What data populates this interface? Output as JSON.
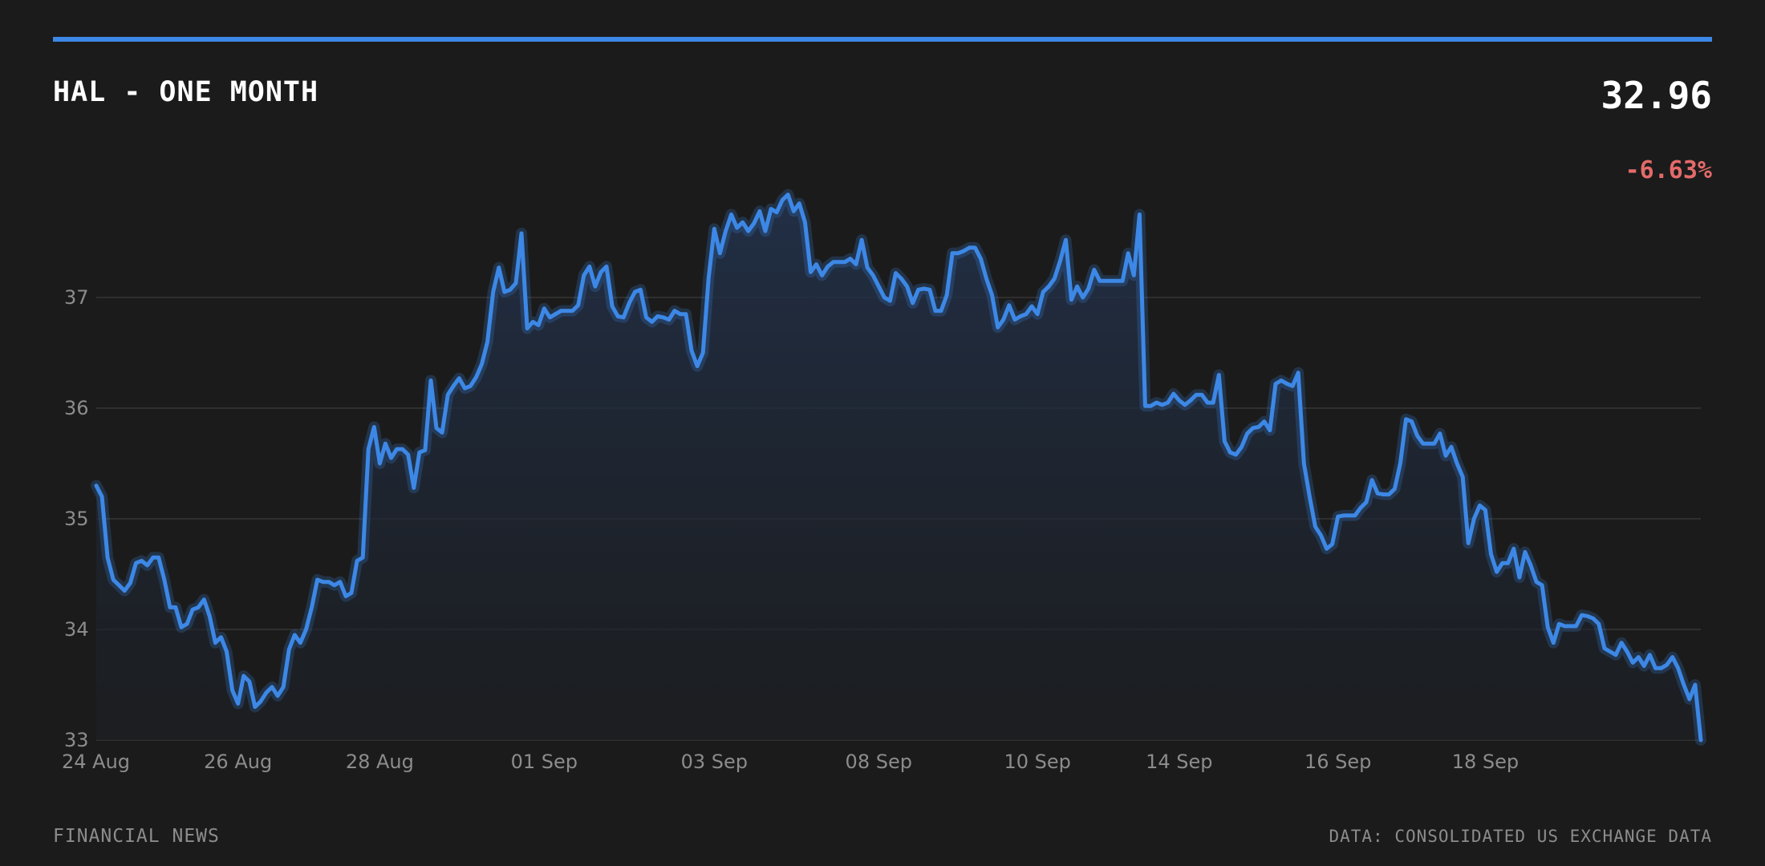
{
  "header": {
    "title": "HAL - ONE MONTH",
    "price": "32.96",
    "change": "-6.63%"
  },
  "footer": {
    "left": "FINANCIAL NEWS",
    "right": "DATA: CONSOLIDATED US EXCHANGE DATA"
  },
  "colors": {
    "background": "#1b1b1b",
    "accent": "#3d88e6",
    "negative": "#e46a6a",
    "grid": "#363636",
    "muted_text": "#8c8c8c"
  },
  "chart_data": {
    "type": "line",
    "title": "HAL - ONE MONTH",
    "xlabel": "",
    "ylabel": "",
    "ylim": [
      33,
      38.9
    ],
    "yticks": [
      33,
      34,
      35,
      36,
      37
    ],
    "grid": true,
    "legend": "none",
    "x_ticks": [
      {
        "label": "24 Aug",
        "index": 0
      },
      {
        "label": "26 Aug",
        "index": 25
      },
      {
        "label": "28 Aug",
        "index": 50
      },
      {
        "label": "01 Sep",
        "index": 79
      },
      {
        "label": "03 Sep",
        "index": 109
      },
      {
        "label": "08 Sep",
        "index": 138
      },
      {
        "label": "10 Sep",
        "index": 166
      },
      {
        "label": "14 Sep",
        "index": 191
      },
      {
        "label": "16 Sep",
        "index": 219
      },
      {
        "label": "18 Sep",
        "index": 245
      },
      {
        "label": "",
        "index": 262
      }
    ],
    "series": [
      {
        "values": [
          35.3,
          35.2,
          34.65,
          34.45,
          34.4,
          34.35,
          34.42,
          34.6,
          34.62,
          34.58,
          34.65,
          34.65,
          34.45,
          34.2,
          34.2,
          34.02,
          34.05,
          34.18,
          34.2,
          34.27,
          34.12,
          33.88,
          33.93,
          33.8,
          33.45,
          33.33,
          33.58,
          33.53,
          33.3,
          33.35,
          33.43,
          33.48,
          33.4,
          33.48,
          33.82,
          33.95,
          33.88,
          34.0,
          34.2,
          34.45,
          34.43,
          34.43,
          34.4,
          34.43,
          34.3,
          34.33,
          34.62,
          34.65,
          35.63,
          35.83,
          35.5,
          35.68,
          35.55,
          35.63,
          35.63,
          35.58,
          35.28,
          35.6,
          35.62,
          36.25,
          35.82,
          35.78,
          36.12,
          36.2,
          36.27,
          36.18,
          36.2,
          36.28,
          36.4,
          36.6,
          37.05,
          37.27,
          37.05,
          37.07,
          37.13,
          37.58,
          36.72,
          36.78,
          36.75,
          36.9,
          36.82,
          36.85,
          36.88,
          36.88,
          36.88,
          36.93,
          37.2,
          37.28,
          37.1,
          37.23,
          37.28,
          36.92,
          36.83,
          36.82,
          36.95,
          37.05,
          37.07,
          36.82,
          36.78,
          36.83,
          36.82,
          36.8,
          36.88,
          36.85,
          36.85,
          36.52,
          36.38,
          36.5,
          37.18,
          37.62,
          37.4,
          37.6,
          37.75,
          37.63,
          37.68,
          37.6,
          37.67,
          37.78,
          37.6,
          37.8,
          37.77,
          37.88,
          37.93,
          37.78,
          37.85,
          37.68,
          37.23,
          37.3,
          37.2,
          37.28,
          37.32,
          37.32,
          37.32,
          37.35,
          37.3,
          37.52,
          37.27,
          37.2,
          37.1,
          37.0,
          36.97,
          37.22,
          37.17,
          37.1,
          36.95,
          37.07,
          37.08,
          37.07,
          36.88,
          36.88,
          37.02,
          37.4,
          37.4,
          37.42,
          37.45,
          37.45,
          37.35,
          37.17,
          37.02,
          36.73,
          36.8,
          36.93,
          36.8,
          36.83,
          36.85,
          36.92,
          36.85,
          37.05,
          37.1,
          37.17,
          37.33,
          37.52,
          36.98,
          37.1,
          37.0,
          37.08,
          37.25,
          37.15,
          37.15,
          37.15,
          37.15,
          37.15,
          37.4,
          37.2,
          37.75,
          36.02,
          36.02,
          36.05,
          36.03,
          36.05,
          36.13,
          36.07,
          36.03,
          36.07,
          36.12,
          36.12,
          36.05,
          36.05,
          36.3,
          35.7,
          35.6,
          35.58,
          35.65,
          35.77,
          35.82,
          35.83,
          35.88,
          35.8,
          36.22,
          36.25,
          36.22,
          36.2,
          36.32,
          35.5,
          35.2,
          34.93,
          34.85,
          34.73,
          34.77,
          35.02,
          35.03,
          35.03,
          35.03,
          35.1,
          35.15,
          35.35,
          35.23,
          35.22,
          35.22,
          35.27,
          35.5,
          35.9,
          35.88,
          35.75,
          35.68,
          35.68,
          35.68,
          35.77,
          35.57,
          35.65,
          35.5,
          35.38,
          34.78,
          35.0,
          35.12,
          35.08,
          34.68,
          34.52,
          34.6,
          34.6,
          34.73,
          34.47,
          34.7,
          34.58,
          34.43,
          34.4,
          34.02,
          33.88,
          34.05,
          34.03,
          34.03,
          34.03,
          34.13,
          34.12,
          34.1,
          34.05,
          33.83,
          33.8,
          33.77,
          33.88,
          33.8,
          33.7,
          33.75,
          33.67,
          33.77,
          33.65,
          33.65,
          33.68,
          33.75,
          33.65,
          33.5,
          33.37,
          33.5,
          33.0
        ]
      }
    ]
  }
}
